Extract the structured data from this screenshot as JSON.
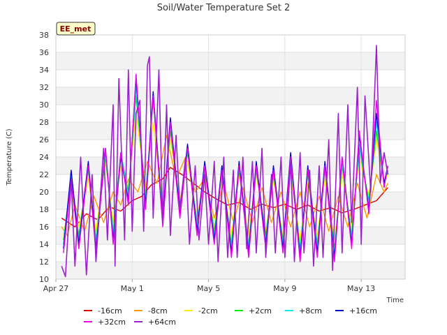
{
  "chart_data": {
    "type": "line",
    "title": "Soil/Water Temperature Set 2",
    "badge": "EE_met",
    "xlabel": "Time",
    "ylabel": "Temperature (C)",
    "xlim": [
      0,
      18.3
    ],
    "ylim": [
      10,
      38
    ],
    "yticks": [
      10,
      12,
      14,
      16,
      18,
      20,
      22,
      24,
      26,
      28,
      30,
      32,
      34,
      36,
      38
    ],
    "xticks": [
      {
        "value": 0,
        "label": "Apr 27"
      },
      {
        "value": 4,
        "label": "May 1"
      },
      {
        "value": 8,
        "label": "May 5"
      },
      {
        "value": 12,
        "label": "May 9"
      },
      {
        "value": 16,
        "label": "May 13"
      }
    ],
    "grid": true,
    "legend_position": "bottom",
    "x_unit": "days since Apr 27 00:00",
    "series": [
      {
        "name": "-16cm",
        "color": "#dd0000",
        "x": [
          0.3,
          1.0,
          1.6,
          2.2,
          2.8,
          3.4,
          4.0,
          4.5,
          5.0,
          5.6,
          6.0,
          6.6,
          7.2,
          7.8,
          8.4,
          9.0,
          9.6,
          10.2,
          10.8,
          11.4,
          12.0,
          12.6,
          13.2,
          13.8,
          14.4,
          15.0,
          15.6,
          16.2,
          16.8,
          17.4
        ],
        "y": [
          17.0,
          16.0,
          17.5,
          16.8,
          18.3,
          17.8,
          19.0,
          19.5,
          20.8,
          21.5,
          22.8,
          22.0,
          21.0,
          20.0,
          19.2,
          18.5,
          18.8,
          18.0,
          18.6,
          18.2,
          18.6,
          18.0,
          18.5,
          17.8,
          18.2,
          17.6,
          18.0,
          18.5,
          19.0,
          20.5
        ]
      },
      {
        "name": "-8cm",
        "color": "#ff9900",
        "x": [
          0.3,
          0.6,
          1.0,
          1.5,
          2.0,
          2.5,
          3.0,
          3.4,
          3.8,
          4.3,
          4.8,
          5.3,
          5.8,
          6.3,
          6.8,
          7.3,
          7.8,
          8.3,
          8.8,
          9.3,
          9.8,
          10.3,
          10.8,
          11.3,
          11.8,
          12.3,
          12.8,
          13.3,
          13.8,
          14.3,
          14.8,
          15.3,
          15.8,
          16.3,
          16.8,
          17.2,
          17.4
        ],
        "y": [
          16.0,
          15.0,
          18.5,
          15.5,
          19.5,
          16.5,
          20.0,
          18.5,
          21.5,
          20.0,
          23.5,
          21.0,
          26.5,
          21.5,
          24.0,
          20.0,
          21.5,
          17.0,
          21.0,
          16.5,
          20.5,
          16.5,
          20.5,
          16.5,
          20.0,
          16.0,
          20.0,
          16.0,
          19.5,
          15.5,
          19.5,
          16.0,
          21.0,
          17.0,
          22.0,
          20.0,
          21.0
        ]
      },
      {
        "name": "-2cm",
        "color": "#ffee00",
        "x": [
          0.4,
          0.8,
          1.2,
          1.7,
          2.1,
          2.6,
          3.0,
          3.4,
          3.8,
          4.2,
          4.7,
          5.1,
          5.6,
          6.0,
          6.5,
          6.9,
          7.4,
          7.8,
          8.3,
          8.7,
          9.2,
          9.6,
          10.1,
          10.5,
          11.0,
          11.4,
          11.9,
          12.3,
          12.8,
          13.2,
          13.7,
          14.1,
          14.6,
          15.0,
          15.5,
          15.9,
          16.4,
          16.8,
          17.2,
          17.4
        ],
        "y": [
          15.0,
          20.0,
          16.0,
          21.5,
          15.5,
          23.5,
          16.5,
          23.0,
          20.5,
          29.0,
          20.5,
          28.0,
          18.5,
          26.0,
          19.0,
          23.5,
          17.0,
          22.0,
          16.0,
          21.5,
          15.0,
          22.0,
          15.0,
          22.0,
          15.5,
          21.5,
          15.0,
          22.0,
          14.5,
          21.0,
          15.0,
          21.5,
          14.5,
          22.0,
          16.0,
          24.0,
          19.5,
          26.0,
          21.0,
          22.0
        ]
      },
      {
        "name": "+2cm",
        "color": "#00ee00",
        "x": [
          0.4,
          0.8,
          1.2,
          1.7,
          2.1,
          2.6,
          3.0,
          3.4,
          3.8,
          4.2,
          4.7,
          5.1,
          5.6,
          6.0,
          6.5,
          6.9,
          7.4,
          7.8,
          8.3,
          8.7,
          9.2,
          9.6,
          10.1,
          10.5,
          11.0,
          11.4,
          11.9,
          12.3,
          12.8,
          13.2,
          13.7,
          14.1,
          14.6,
          15.0,
          15.5,
          15.9,
          16.4,
          16.8,
          17.2,
          17.4
        ],
        "y": [
          14.5,
          21.5,
          15.0,
          22.5,
          14.5,
          24.0,
          15.5,
          24.5,
          20.0,
          31.0,
          19.5,
          30.5,
          17.5,
          27.0,
          18.5,
          24.5,
          16.5,
          22.5,
          15.5,
          22.0,
          14.0,
          22.5,
          14.0,
          22.5,
          15.0,
          22.0,
          14.5,
          23.0,
          13.5,
          22.0,
          14.0,
          22.5,
          13.5,
          23.0,
          15.0,
          25.0,
          19.0,
          27.0,
          21.0,
          22.5
        ]
      },
      {
        "name": "+8cm",
        "color": "#00eeee",
        "x": [
          0.4,
          0.8,
          1.2,
          1.7,
          2.1,
          2.6,
          3.0,
          3.4,
          3.8,
          4.2,
          4.7,
          5.1,
          5.6,
          6.0,
          6.5,
          6.9,
          7.4,
          7.8,
          8.3,
          8.7,
          9.2,
          9.6,
          10.1,
          10.5,
          11.0,
          11.4,
          11.9,
          12.3,
          12.8,
          13.2,
          13.7,
          14.1,
          14.6,
          15.0,
          15.5,
          15.9,
          16.4,
          16.8,
          17.2,
          17.4
        ],
        "y": [
          14.0,
          22.0,
          14.5,
          23.0,
          14.0,
          24.5,
          15.0,
          24.5,
          19.5,
          32.0,
          19.0,
          31.0,
          17.0,
          28.0,
          18.0,
          25.0,
          16.0,
          23.0,
          15.0,
          22.5,
          13.5,
          23.0,
          13.5,
          23.0,
          14.5,
          22.5,
          14.0,
          23.5,
          13.0,
          22.5,
          13.5,
          23.0,
          13.0,
          23.5,
          14.5,
          25.5,
          18.5,
          28.0,
          21.0,
          22.5
        ]
      },
      {
        "name": "+16cm",
        "color": "#0000cc",
        "x": [
          0.4,
          0.8,
          1.2,
          1.7,
          2.1,
          2.6,
          3.0,
          3.4,
          3.8,
          4.2,
          4.7,
          5.1,
          5.6,
          6.0,
          6.5,
          6.9,
          7.4,
          7.8,
          8.3,
          8.7,
          9.2,
          9.6,
          10.1,
          10.5,
          11.0,
          11.4,
          11.9,
          12.3,
          12.8,
          13.2,
          13.7,
          14.1,
          14.6,
          15.0,
          15.5,
          15.9,
          16.4,
          16.8,
          17.2,
          17.4
        ],
        "y": [
          13.5,
          22.5,
          14.0,
          23.5,
          13.5,
          25.0,
          14.5,
          24.0,
          19.0,
          33.0,
          18.5,
          31.5,
          16.5,
          28.5,
          17.5,
          25.5,
          15.5,
          23.5,
          14.5,
          23.0,
          13.0,
          23.5,
          13.0,
          23.5,
          14.0,
          23.0,
          13.5,
          24.5,
          12.5,
          23.0,
          13.0,
          23.5,
          12.5,
          24.0,
          14.0,
          26.5,
          18.0,
          29.0,
          21.0,
          23.0
        ]
      },
      {
        "name": "+32cm",
        "color": "#ee00ee",
        "x": [
          0.4,
          0.8,
          1.2,
          1.7,
          2.1,
          2.6,
          3.0,
          3.4,
          3.8,
          4.2,
          4.7,
          5.1,
          5.6,
          6.0,
          6.5,
          6.9,
          7.4,
          7.8,
          8.3,
          8.7,
          9.2,
          9.6,
          10.1,
          10.5,
          11.0,
          11.4,
          11.9,
          12.3,
          12.8,
          13.2,
          13.7,
          14.1,
          14.6,
          15.0,
          15.5,
          15.9,
          16.4,
          16.8,
          17.2,
          17.4
        ],
        "y": [
          13.0,
          21.5,
          13.5,
          23.0,
          13.0,
          25.0,
          14.0,
          24.5,
          18.5,
          33.5,
          18.0,
          31.0,
          16.0,
          28.0,
          17.0,
          25.0,
          15.0,
          23.0,
          14.0,
          22.5,
          12.5,
          23.0,
          12.5,
          23.0,
          13.5,
          22.5,
          13.0,
          24.0,
          12.0,
          22.5,
          12.5,
          23.0,
          12.0,
          24.0,
          13.5,
          27.0,
          17.5,
          30.5,
          20.5,
          23.0
        ]
      },
      {
        "name": "+64cm",
        "color": "#9922cc",
        "x": [
          0.3,
          0.5,
          0.8,
          1.0,
          1.3,
          1.6,
          1.9,
          2.1,
          2.5,
          2.7,
          3.0,
          3.1,
          3.3,
          3.6,
          3.8,
          4.0,
          4.2,
          4.4,
          4.6,
          4.8,
          4.9,
          5.1,
          5.4,
          5.6,
          5.8,
          6.0,
          6.3,
          6.5,
          6.8,
          7.0,
          7.3,
          7.5,
          7.8,
          8.0,
          8.3,
          8.5,
          8.8,
          9.0,
          9.3,
          9.5,
          9.8,
          10.0,
          10.3,
          10.5,
          10.8,
          11.0,
          11.3,
          11.5,
          11.8,
          12.0,
          12.3,
          12.5,
          12.8,
          13.0,
          13.3,
          13.5,
          13.8,
          14.0,
          14.3,
          14.5,
          14.8,
          15.0,
          15.3,
          15.5,
          15.8,
          16.0,
          16.2,
          16.5,
          16.8,
          17.0,
          17.2,
          17.4
        ],
        "y": [
          11.5,
          10.3,
          21.5,
          11.5,
          24.0,
          10.5,
          22.0,
          12.0,
          25.0,
          14.5,
          30.0,
          11.5,
          33.0,
          14.5,
          34.0,
          15.5,
          29.0,
          30.5,
          15.5,
          34.5,
          35.5,
          17.0,
          34.0,
          16.5,
          30.0,
          15.0,
          26.5,
          18.0,
          24.0,
          14.0,
          23.0,
          14.5,
          22.0,
          14.0,
          23.5,
          12.0,
          24.0,
          12.5,
          22.5,
          12.5,
          24.0,
          13.5,
          23.5,
          13.0,
          25.0,
          12.5,
          22.0,
          13.0,
          24.0,
          12.5,
          23.5,
          12.0,
          24.5,
          13.0,
          22.5,
          11.5,
          23.0,
          12.5,
          26.0,
          11.0,
          29.0,
          13.0,
          30.0,
          16.5,
          32.0,
          14.0,
          31.0,
          20.0,
          36.8,
          21.0,
          24.5,
          22.0
        ]
      }
    ]
  }
}
